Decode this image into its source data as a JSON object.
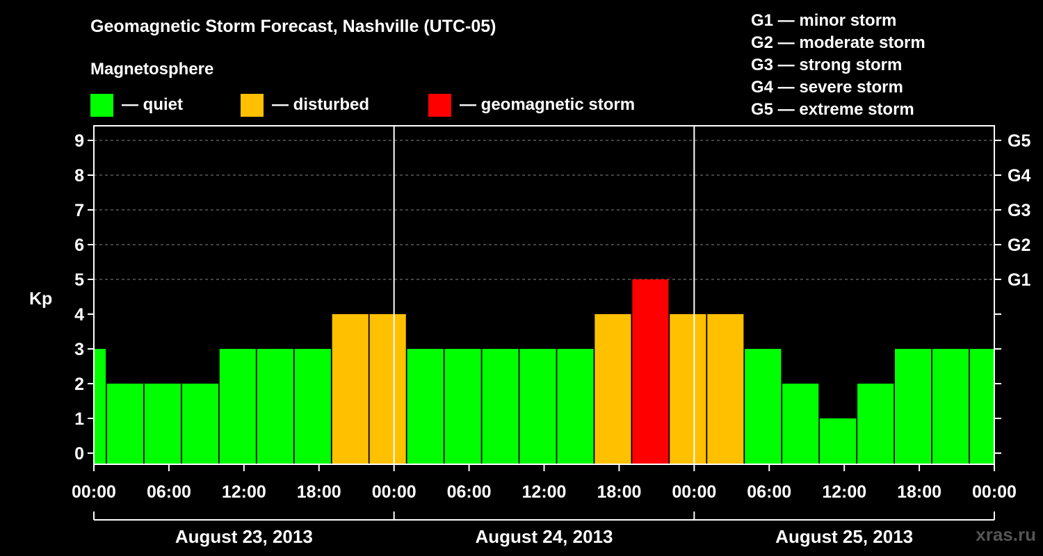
{
  "title": "Geomagnetic Storm Forecast, Nashville (UTC-05)",
  "legend": {
    "heading": "Magnetosphere",
    "items": [
      {
        "label": "— quiet",
        "color": "#00ff00"
      },
      {
        "label": "— disturbed",
        "color": "#ffc000"
      },
      {
        "label": "— geomagnetic storm",
        "color": "#ff0000"
      }
    ]
  },
  "storm_levels": [
    "G1 — minor storm",
    "G2 — moderate storm",
    "G3 — strong storm",
    "G4 — severe storm",
    "G5 — extreme storm"
  ],
  "watermark": "xras.ru",
  "chart_data": {
    "type": "bar",
    "ylabel": "Kp",
    "ylim": [
      -0.3,
      9.4
    ],
    "yticks": [
      0,
      1,
      2,
      3,
      4,
      5,
      6,
      7,
      8,
      9
    ],
    "right_ticks": [
      {
        "value": 5,
        "label": "G1"
      },
      {
        "value": 6,
        "label": "G2"
      },
      {
        "value": 7,
        "label": "G3"
      },
      {
        "value": 8,
        "label": "G4"
      },
      {
        "value": 9,
        "label": "G5"
      }
    ],
    "grid": "dashed horizontal at Kp 5-9",
    "x_hours_range": [
      0,
      72
    ],
    "xtick_hours": [
      0,
      6,
      12,
      18,
      24,
      30,
      36,
      42,
      48,
      54,
      60,
      66,
      72
    ],
    "xtick_labels": [
      "00:00",
      "06:00",
      "12:00",
      "18:00",
      "00:00",
      "06:00",
      "12:00",
      "18:00",
      "00:00",
      "06:00",
      "12:00",
      "18:00",
      "00:00"
    ],
    "day_dividers_hours": [
      24,
      48
    ],
    "days": [
      {
        "label": "August 23, 2013",
        "start_hour": 0,
        "end_hour": 24
      },
      {
        "label": "August 24, 2013",
        "start_hour": 24,
        "end_hour": 48
      },
      {
        "label": "August 25, 2013",
        "start_hour": 48,
        "end_hour": 72
      }
    ],
    "bars": [
      {
        "start_hour": -2,
        "value": 3,
        "level": "quiet"
      },
      {
        "start_hour": 1,
        "value": 2,
        "level": "quiet"
      },
      {
        "start_hour": 4,
        "value": 2,
        "level": "quiet"
      },
      {
        "start_hour": 7,
        "value": 2,
        "level": "quiet"
      },
      {
        "start_hour": 10,
        "value": 3,
        "level": "quiet"
      },
      {
        "start_hour": 13,
        "value": 3,
        "level": "quiet"
      },
      {
        "start_hour": 16,
        "value": 3,
        "level": "quiet"
      },
      {
        "start_hour": 19,
        "value": 4,
        "level": "disturbed"
      },
      {
        "start_hour": 22,
        "value": 4,
        "level": "disturbed"
      },
      {
        "start_hour": 25,
        "value": 3,
        "level": "quiet"
      },
      {
        "start_hour": 28,
        "value": 3,
        "level": "quiet"
      },
      {
        "start_hour": 31,
        "value": 3,
        "level": "quiet"
      },
      {
        "start_hour": 34,
        "value": 3,
        "level": "quiet"
      },
      {
        "start_hour": 37,
        "value": 3,
        "level": "quiet"
      },
      {
        "start_hour": 40,
        "value": 4,
        "level": "disturbed"
      },
      {
        "start_hour": 43,
        "value": 5,
        "level": "storm"
      },
      {
        "start_hour": 46,
        "value": 4,
        "level": "disturbed"
      },
      {
        "start_hour": 49,
        "value": 4,
        "level": "disturbed"
      },
      {
        "start_hour": 52,
        "value": 3,
        "level": "quiet"
      },
      {
        "start_hour": 55,
        "value": 2,
        "level": "quiet"
      },
      {
        "start_hour": 58,
        "value": 1,
        "level": "quiet"
      },
      {
        "start_hour": 61,
        "value": 2,
        "level": "quiet"
      },
      {
        "start_hour": 64,
        "value": 3,
        "level": "quiet"
      },
      {
        "start_hour": 67,
        "value": 3,
        "level": "quiet"
      },
      {
        "start_hour": 70,
        "value": 3,
        "level": "quiet"
      }
    ],
    "level_colors": {
      "quiet": "#00ff00",
      "disturbed": "#ffc000",
      "storm": "#ff0000"
    }
  }
}
